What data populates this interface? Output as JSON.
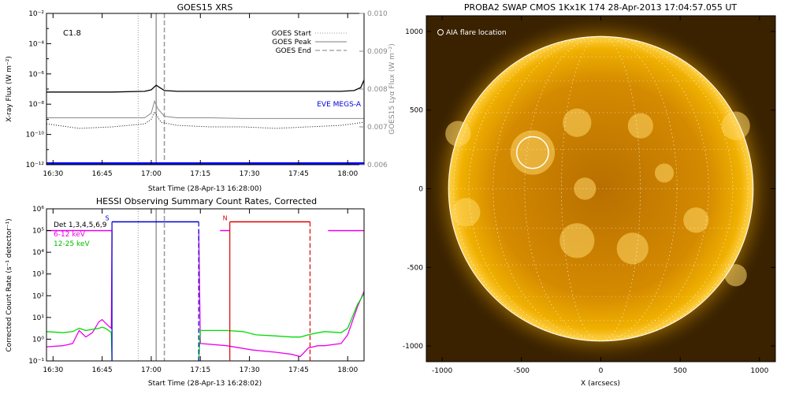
{
  "chart_data": [
    {
      "type": "line",
      "title": "GOES15 XRS",
      "xlabel": "Start Time (28-Apr-13 16:28:00)",
      "ylabel": "X-ray Flux (W m⁻²)",
      "y2label": "GOES15 Lyα Flux (W m⁻²)",
      "x_ticks": [
        "16:30",
        "16:45",
        "17:00",
        "17:15",
        "17:30",
        "17:45",
        "18:00"
      ],
      "x_tick_minutes": [
        2,
        17,
        32,
        47,
        62,
        77,
        92
      ],
      "xlim_minutes": [
        0,
        97
      ],
      "y_scale": "log",
      "ylim_exp": [
        -12,
        -2
      ],
      "y_tick_labels": [
        "10⁻¹²",
        "10⁻¹⁰",
        "10⁻⁸",
        "10⁻⁶",
        "10⁻⁴",
        "10⁻²"
      ],
      "y2lim": [
        0.006,
        0.01
      ],
      "y2_tick_labels": [
        "0.006",
        "0.007",
        "0.008",
        "0.009",
        "0.010"
      ],
      "flare_class": "C1.8",
      "legend": [
        "GOES Start",
        "GOES Peak",
        "GOES End"
      ],
      "legend_placement": "top-right",
      "annotation": "EVE MEGS-A",
      "event_lines_minutes": {
        "start": 28,
        "peak": 33.5,
        "end": 36
      },
      "series": [
        {
          "name": "",
          "x": [
            0,
            10,
            20,
            30,
            32,
            33.5,
            36,
            40,
            50,
            60,
            70,
            80,
            90,
            94,
            96,
            97
          ],
          "y_exp": [
            -7.2,
            -7.2,
            -7.2,
            -7.15,
            -7.05,
            -6.75,
            -7.1,
            -7.15,
            -7.15,
            -7.15,
            -7.15,
            -7.15,
            -7.15,
            -7.1,
            -6.9,
            -6.4
          ]
        },
        {
          "name": "",
          "x": [
            0,
            10,
            20,
            30,
            32,
            33,
            34,
            36,
            40,
            50,
            60,
            70,
            80,
            90,
            97
          ],
          "y_exp": [
            -8.9,
            -8.9,
            -8.9,
            -8.9,
            -8.6,
            -7.8,
            -8.3,
            -8.8,
            -8.9,
            -8.9,
            -8.95,
            -8.95,
            -8.95,
            -8.95,
            -8.95
          ]
        },
        {
          "name": "",
          "x": [
            0,
            10,
            20,
            30,
            32,
            33,
            35,
            40,
            50,
            60,
            70,
            80,
            90,
            97
          ],
          "y_exp": [
            -9.3,
            -9.6,
            -9.5,
            -9.3,
            -9.0,
            -8.5,
            -9.2,
            -9.4,
            -9.5,
            -9.5,
            -9.6,
            -9.5,
            -9.4,
            -9.2
          ]
        }
      ],
      "eve_level_exp": -12
    },
    {
      "type": "line",
      "title": "HESSI Observing Summary Count Rates, Corrected",
      "xlabel": "Start Time (28-Apr-13 16:28:02)",
      "ylabel": "Corrected Count Rate (s⁻¹ detector⁻¹)",
      "x_ticks": [
        "16:30",
        "16:45",
        "17:00",
        "17:15",
        "17:30",
        "17:45",
        "18:00"
      ],
      "x_tick_minutes": [
        2,
        17,
        32,
        47,
        62,
        77,
        92
      ],
      "xlim_minutes": [
        0,
        97
      ],
      "y_scale": "log",
      "ylim_exp": [
        -1,
        6
      ],
      "y_tick_labels": [
        "10⁻¹",
        "10⁰",
        "10¹",
        "10²",
        "10³",
        "10⁴",
        "10⁵",
        "10⁶"
      ],
      "legend": [
        "Det 1,3,4,5,6,9",
        "6-12 keV",
        "12-25 keV"
      ],
      "legend_placement": "top-left",
      "markers": [
        {
          "label": "S",
          "start_min": 20,
          "end_min": 46.5,
          "color": "#0000cc"
        },
        {
          "label": "N",
          "start_min": 56,
          "end_min": 80.5,
          "color": "#dd0000"
        }
      ],
      "event_lines_minutes": {
        "start": 28,
        "peak": 33.5,
        "end": 36
      },
      "series": [
        {
          "name": "6-12 keV",
          "color": "#ee00ee",
          "x": [
            0,
            5,
            8,
            10,
            12,
            14,
            16,
            17,
            18,
            19,
            19.8,
            20
          ],
          "y_exp": [
            -0.35,
            -0.3,
            -0.2,
            0.4,
            0.1,
            0.3,
            0.8,
            0.9,
            0.75,
            0.6,
            0.5,
            5
          ]
        },
        {
          "name": "12-25 keV",
          "color": "#00dd00",
          "x": [
            0,
            5,
            8,
            10,
            12,
            14,
            16,
            17,
            18,
            19,
            19.8,
            20
          ],
          "y_exp": [
            0.35,
            0.3,
            0.35,
            0.5,
            0.4,
            0.45,
            0.5,
            0.55,
            0.5,
            0.4,
            0.3,
            -1
          ]
        },
        {
          "name": "6-12 keV",
          "color": "#ee00ee",
          "x": [
            46.5,
            47,
            55,
            63,
            70,
            75,
            77.5,
            80,
            83,
            85,
            90,
            92,
            95,
            97
          ],
          "y_exp": [
            5,
            -0.2,
            -0.3,
            -0.5,
            -0.6,
            -0.7,
            -0.8,
            -0.4,
            -0.3,
            -0.3,
            -0.2,
            0.2,
            1.5,
            2.2
          ]
        },
        {
          "name": "12-25 keV",
          "color": "#00dd00",
          "x": [
            46.5,
            47,
            55,
            60,
            64,
            70,
            75,
            77.5,
            80,
            83,
            85,
            90,
            92,
            95,
            97
          ],
          "y_exp": [
            -1,
            0.4,
            0.4,
            0.35,
            0.2,
            0.15,
            0.1,
            0.1,
            0.2,
            0.3,
            0.35,
            0.3,
            0.5,
            1.6,
            2.1
          ]
        }
      ],
      "magenta_level_segments": [
        [
          0,
          20
        ],
        [
          53,
          56
        ],
        [
          86,
          97
        ]
      ],
      "level_exp": 5
    },
    {
      "type": "image",
      "title": "PROBA2 SWAP CMOS 1Kx1K 174 28-Apr-2013 17:04:57.055 UT",
      "xlabel": "X (arcsecs)",
      "x_ticks": [
        "-1000",
        "-500",
        "0",
        "500",
        "1000"
      ],
      "x_tick_values": [
        -1000,
        -500,
        0,
        500,
        1000
      ],
      "y_ticks": [
        "1000",
        "500",
        "0",
        "-500",
        "-1000"
      ],
      "y_tick_values": [
        1000,
        500,
        0,
        -500,
        -1000
      ],
      "xlim": [
        -1100,
        1100
      ],
      "ylim": [
        -1100,
        1100
      ],
      "solar_radius_arcsec": 960,
      "legend": "AIA flare location",
      "flare_location_arcsec": [
        -430,
        230
      ],
      "flare_circle_radius_arcsec": 100,
      "colors": {
        "disk": "#e8a000",
        "background": "#3a2200",
        "limb": "#ffe070"
      }
    }
  ]
}
